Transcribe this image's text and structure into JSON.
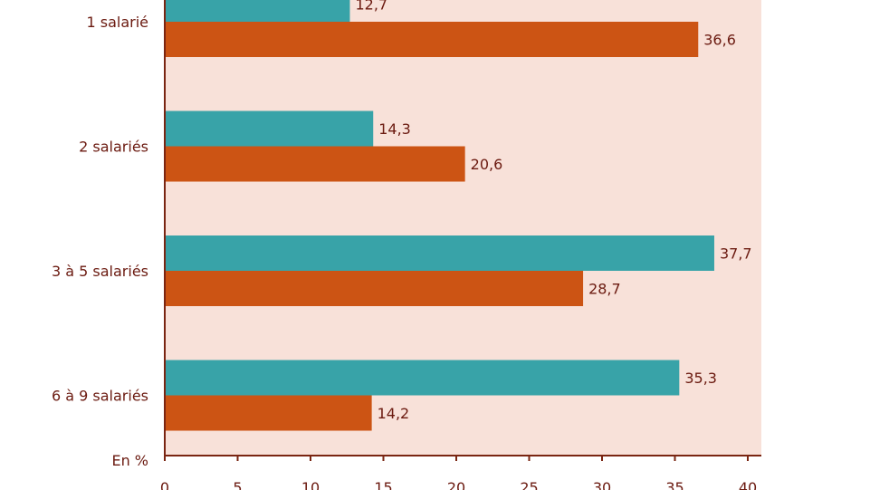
{
  "chart_data": {
    "type": "bar",
    "orientation": "horizontal",
    "categories": [
      "1 salarié",
      "2 salariés",
      "3 à 5 salariés",
      "6 à 9 salariés"
    ],
    "series": [
      {
        "color": "#38a3a8",
        "values": [
          12.7,
          14.3,
          37.7,
          35.3
        ]
      },
      {
        "color": "#cc5414",
        "values": [
          36.6,
          20.6,
          28.7,
          14.2
        ]
      }
    ],
    "data_labels": [
      [
        "12,7",
        "14,3",
        "37,7",
        "35,3"
      ],
      [
        "36,6",
        "20,6",
        "28,7",
        "14,2"
      ]
    ],
    "xlim": [
      0,
      40
    ],
    "x_ticks": [
      0,
      5,
      10,
      15,
      20,
      25,
      30,
      35,
      40
    ],
    "x_unit_label": "En %",
    "grid": false,
    "plot_background": "#f8e1d9",
    "axis_color": "#7a2512",
    "text_color": "#6b1a10"
  }
}
